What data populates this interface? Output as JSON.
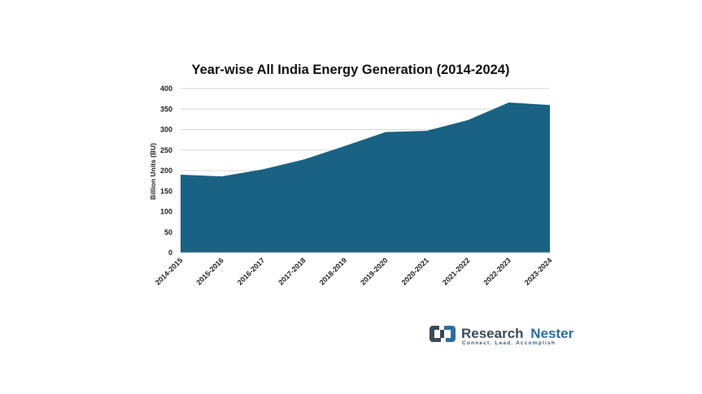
{
  "chart_data": {
    "type": "area",
    "title": "Year-wise All India Energy Generation (2014-2024)",
    "xlabel": "",
    "ylabel": "Billion Units (BU)",
    "ylim": [
      0,
      400
    ],
    "yticks": [
      0,
      50,
      100,
      150,
      200,
      250,
      300,
      350,
      400
    ],
    "grid": true,
    "legend": "none",
    "color": "#1a6283",
    "categories": [
      "2014-2015",
      "2015-2016",
      "2016-2017",
      "2017-2018",
      "2018-2019",
      "2019-2020",
      "2020-2021",
      "2021-2022",
      "2022-2023",
      "2023-2024"
    ],
    "series": [
      {
        "values": [
          190,
          186,
          203,
          227,
          260,
          294,
          297,
          323,
          366,
          360
        ]
      }
    ]
  },
  "brand": {
    "name_part1": "Research",
    "name_part2": "Nester",
    "tagline": "Connect. Lead. Accomplish",
    "colors": {
      "dark": "#3d4a55",
      "accent": "#2b6e9e"
    }
  }
}
